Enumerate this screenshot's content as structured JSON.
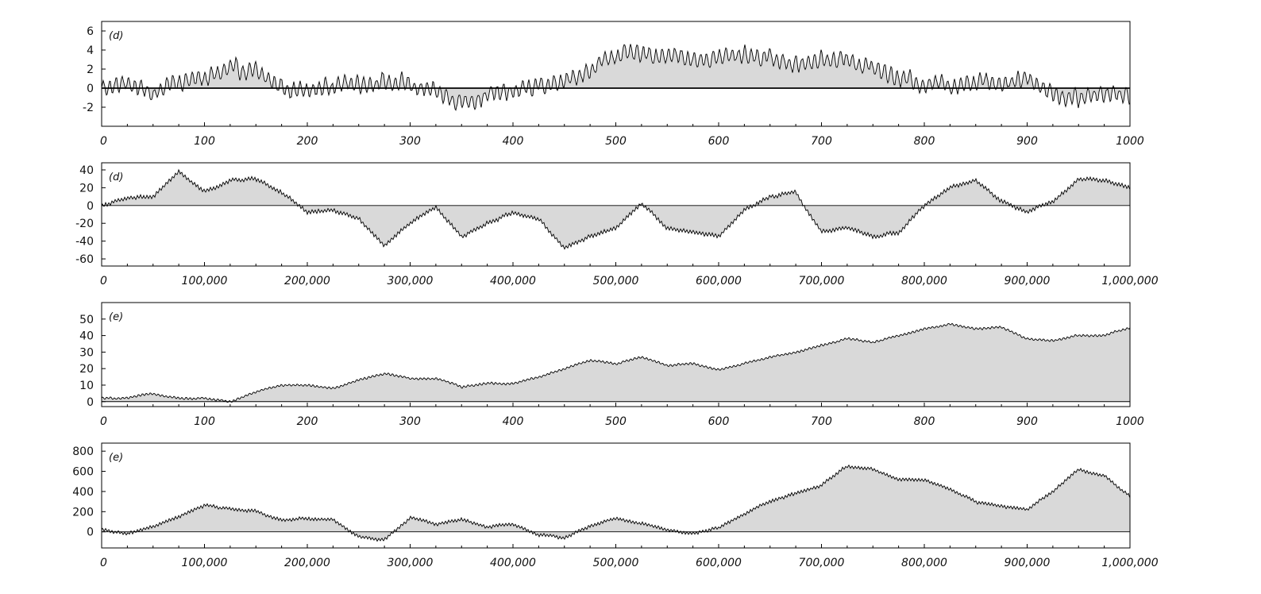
{
  "chart_data": [
    {
      "type": "area",
      "label": "(d)",
      "title": "",
      "xlabel": "",
      "ylabel": "",
      "xlim": [
        0,
        1000
      ],
      "ylim": [
        -4,
        7
      ],
      "x_ticks": [
        0,
        100,
        200,
        300,
        400,
        500,
        600,
        700,
        800,
        900,
        1000
      ],
      "x_tick_labels": [
        "0",
        "100",
        "200",
        "300",
        "400",
        "500",
        "600",
        "700",
        "800",
        "900",
        "1000"
      ],
      "y_ticks": [
        -2,
        0,
        2,
        4,
        6
      ],
      "y_tick_labels": [
        "-2",
        "0",
        "2",
        "4",
        "6"
      ],
      "zero_line_bold": true,
      "grid": false,
      "x": [
        0,
        25,
        50,
        75,
        100,
        125,
        150,
        175,
        200,
        225,
        250,
        275,
        300,
        325,
        350,
        375,
        400,
        425,
        450,
        475,
        500,
        525,
        550,
        575,
        600,
        625,
        650,
        675,
        700,
        725,
        750,
        775,
        800,
        825,
        850,
        875,
        900,
        925,
        950,
        975,
        1000
      ],
      "series": [
        {
          "values": [
            0,
            0.5,
            -0.5,
            0.8,
            1.0,
            2.0,
            1.6,
            0.2,
            -0.4,
            0.4,
            0.6,
            0.7,
            0.3,
            -0.6,
            -1.4,
            -0.8,
            -0.4,
            0.2,
            0.6,
            2.0,
            3.6,
            3.4,
            3.6,
            3.0,
            3.2,
            3.6,
            3.2,
            2.4,
            3.2,
            3.0,
            2.2,
            1.0,
            0.6,
            0.4,
            0.8,
            0.6,
            1.2,
            -0.6,
            -1.2,
            -0.4,
            -0.8
          ],
          "amplitude": 1.0,
          "period": 8
        }
      ]
    },
    {
      "type": "area",
      "label": "(d)",
      "title": "",
      "xlabel": "",
      "ylabel": "",
      "xlim": [
        0,
        1000000
      ],
      "ylim": [
        -68,
        48
      ],
      "x_ticks": [
        0,
        100000,
        200000,
        300000,
        400000,
        500000,
        600000,
        700000,
        800000,
        900000,
        1000000
      ],
      "x_tick_labels": [
        "0",
        "100,000",
        "200,000",
        "300,000",
        "400,000",
        "500,000",
        "600,000",
        "700,000",
        "800,000",
        "900,000",
        "1,000,000"
      ],
      "y_ticks": [
        -60,
        -40,
        -20,
        0,
        20,
        40
      ],
      "y_tick_labels": [
        "-60",
        "-40",
        "-20",
        "0",
        "20",
        "40"
      ],
      "grid": false,
      "x": [
        0,
        25000,
        50000,
        75000,
        100000,
        125000,
        150000,
        175000,
        200000,
        225000,
        250000,
        275000,
        300000,
        325000,
        350000,
        375000,
        400000,
        425000,
        450000,
        475000,
        500000,
        525000,
        550000,
        575000,
        600000,
        625000,
        650000,
        675000,
        700000,
        725000,
        750000,
        775000,
        800000,
        825000,
        850000,
        875000,
        900000,
        925000,
        950000,
        975000,
        1000000
      ],
      "series": [
        {
          "values": [
            0,
            8,
            10,
            38,
            15,
            28,
            30,
            15,
            -8,
            -5,
            -15,
            -45,
            -20,
            -2,
            -35,
            -20,
            -8,
            -15,
            -48,
            -35,
            -25,
            3,
            -25,
            -30,
            -35,
            -5,
            10,
            15,
            -30,
            -25,
            -35,
            -30,
            0,
            20,
            28,
            5,
            -8,
            5,
            30,
            28,
            20
          ],
          "amplitude": 2.5,
          "period": 4
        }
      ]
    },
    {
      "type": "area",
      "label": "(e)",
      "title": "",
      "xlabel": "",
      "ylabel": "",
      "xlim": [
        0,
        1000
      ],
      "ylim": [
        -3,
        60
      ],
      "x_ticks": [
        0,
        100,
        200,
        300,
        400,
        500,
        600,
        700,
        800,
        900,
        1000
      ],
      "x_tick_labels": [
        "0",
        "100",
        "200",
        "300",
        "400",
        "500",
        "600",
        "700",
        "800",
        "900",
        "1000"
      ],
      "y_ticks": [
        0,
        10,
        20,
        30,
        40,
        50
      ],
      "y_tick_labels": [
        "0",
        "10",
        "20",
        "30",
        "40",
        "50"
      ],
      "grid": false,
      "x": [
        0,
        25,
        50,
        75,
        100,
        125,
        150,
        175,
        200,
        225,
        250,
        275,
        300,
        325,
        350,
        375,
        400,
        425,
        450,
        475,
        500,
        525,
        550,
        575,
        600,
        625,
        650,
        675,
        700,
        725,
        750,
        775,
        800,
        825,
        850,
        875,
        900,
        925,
        950,
        975,
        1000
      ],
      "series": [
        {
          "values": [
            2,
            2,
            5,
            2,
            2,
            0,
            6,
            10,
            10,
            8,
            13,
            17,
            14,
            14,
            9,
            11,
            11,
            15,
            20,
            25,
            23,
            27,
            22,
            23,
            19,
            23,
            27,
            30,
            34,
            38,
            36,
            40,
            44,
            47,
            44,
            45,
            38,
            37,
            40,
            40,
            45
          ],
          "amplitude": 0.8,
          "period": 5
        }
      ]
    },
    {
      "type": "area",
      "label": "(e)",
      "title": "",
      "xlabel": "",
      "ylabel": "",
      "xlim": [
        0,
        1000000
      ],
      "ylim": [
        -160,
        880
      ],
      "x_ticks": [
        0,
        100000,
        200000,
        300000,
        400000,
        500000,
        600000,
        700000,
        800000,
        900000,
        1000000
      ],
      "x_tick_labels": [
        "0",
        "100,000",
        "200,000",
        "300,000",
        "400,000",
        "500,000",
        "600,000",
        "700,000",
        "800,000",
        "900,000",
        "1,000,000"
      ],
      "y_ticks": [
        0,
        200,
        400,
        600,
        800
      ],
      "y_tick_labels": [
        "0",
        "200",
        "400",
        "600",
        "800"
      ],
      "grid": false,
      "x": [
        0,
        25000,
        50000,
        75000,
        100000,
        125000,
        150000,
        175000,
        200000,
        225000,
        250000,
        275000,
        300000,
        325000,
        350000,
        375000,
        400000,
        425000,
        450000,
        475000,
        500000,
        525000,
        550000,
        575000,
        600000,
        625000,
        650000,
        675000,
        700000,
        725000,
        750000,
        775000,
        800000,
        825000,
        850000,
        875000,
        900000,
        925000,
        950000,
        975000,
        1000000
      ],
      "series": [
        {
          "values": [
            20,
            -20,
            50,
            150,
            260,
            230,
            200,
            120,
            130,
            120,
            -50,
            -80,
            140,
            80,
            120,
            50,
            80,
            -30,
            -60,
            60,
            130,
            80,
            20,
            -20,
            40,
            180,
            300,
            380,
            460,
            650,
            620,
            520,
            520,
            420,
            300,
            250,
            220,
            400,
            620,
            560,
            350
          ],
          "amplitude": 18,
          "period": 4
        }
      ]
    }
  ]
}
